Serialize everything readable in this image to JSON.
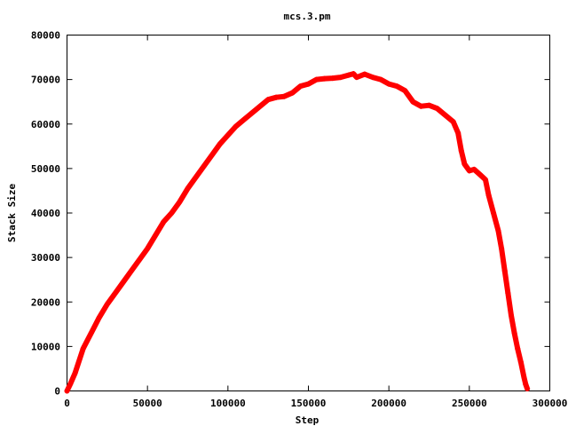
{
  "chart_data": {
    "type": "line",
    "title": "mcs.3.pm",
    "xlabel": "Step",
    "ylabel": "Stack Size",
    "xlim": [
      0,
      300000
    ],
    "ylim": [
      0,
      80000
    ],
    "xticks": [
      0,
      50000,
      100000,
      150000,
      200000,
      250000,
      300000
    ],
    "yticks": [
      0,
      10000,
      20000,
      30000,
      40000,
      50000,
      60000,
      70000,
      80000
    ],
    "grid": false,
    "legend": "none",
    "series": [
      {
        "color": "#ff0000",
        "marker": "plus",
        "points": [
          [
            0,
            0
          ],
          [
            2000,
            1500
          ],
          [
            5000,
            4000
          ],
          [
            10000,
            9500
          ],
          [
            15000,
            13000
          ],
          [
            20000,
            16500
          ],
          [
            25000,
            19500
          ],
          [
            30000,
            22000
          ],
          [
            35000,
            24500
          ],
          [
            40000,
            27000
          ],
          [
            45000,
            29500
          ],
          [
            50000,
            32000
          ],
          [
            55000,
            35000
          ],
          [
            60000,
            38000
          ],
          [
            65000,
            40000
          ],
          [
            70000,
            42500
          ],
          [
            75000,
            45500
          ],
          [
            80000,
            48000
          ],
          [
            85000,
            50500
          ],
          [
            90000,
            53000
          ],
          [
            95000,
            55500
          ],
          [
            100000,
            57500
          ],
          [
            105000,
            59500
          ],
          [
            110000,
            61000
          ],
          [
            115000,
            62500
          ],
          [
            120000,
            64000
          ],
          [
            125000,
            65500
          ],
          [
            130000,
            66000
          ],
          [
            135000,
            66200
          ],
          [
            140000,
            67000
          ],
          [
            145000,
            68500
          ],
          [
            150000,
            69000
          ],
          [
            155000,
            70000
          ],
          [
            160000,
            70200
          ],
          [
            165000,
            70300
          ],
          [
            170000,
            70500
          ],
          [
            175000,
            71000
          ],
          [
            178000,
            71300
          ],
          [
            180000,
            70500
          ],
          [
            185000,
            71200
          ],
          [
            190000,
            70500
          ],
          [
            195000,
            70000
          ],
          [
            200000,
            69000
          ],
          [
            205000,
            68500
          ],
          [
            210000,
            67500
          ],
          [
            215000,
            65000
          ],
          [
            220000,
            64000
          ],
          [
            225000,
            64200
          ],
          [
            230000,
            63500
          ],
          [
            235000,
            62000
          ],
          [
            240000,
            60500
          ],
          [
            243000,
            58000
          ],
          [
            245000,
            54000
          ],
          [
            247000,
            51000
          ],
          [
            250000,
            49500
          ],
          [
            253000,
            49800
          ],
          [
            257000,
            48500
          ],
          [
            260000,
            47500
          ],
          [
            262000,
            44000
          ],
          [
            265000,
            40000
          ],
          [
            268000,
            36000
          ],
          [
            270000,
            32000
          ],
          [
            272000,
            27000
          ],
          [
            274000,
            22000
          ],
          [
            276000,
            17000
          ],
          [
            278000,
            13000
          ],
          [
            280000,
            9500
          ],
          [
            282000,
            6500
          ],
          [
            284000,
            3000
          ],
          [
            285000,
            1500
          ],
          [
            286000,
            500
          ]
        ]
      }
    ]
  }
}
